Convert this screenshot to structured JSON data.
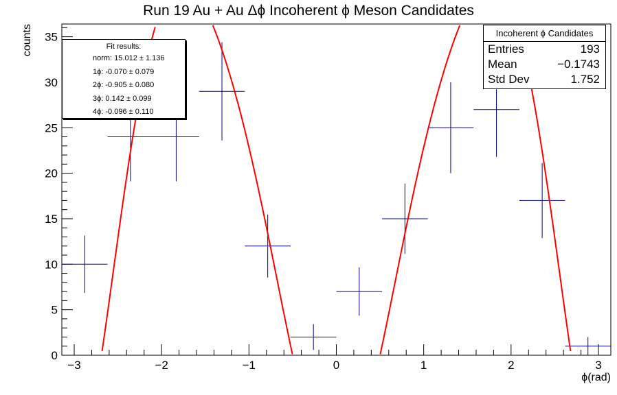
{
  "title": "Run 19 Au + Au Δϕ Incoherent ϕ Meson Candidates",
  "stats_box": {
    "name": "Incoherent ϕ Candidates",
    "rows": [
      {
        "label": "Entries",
        "value": "193"
      },
      {
        "label": "Mean",
        "value": "−0.1743"
      },
      {
        "label": "Std Dev",
        "value": "1.752"
      }
    ]
  },
  "fit_box": {
    "header": "Fit results:",
    "lines": [
      "norm: 15.012 ± 1.136",
      "1ϕ: -0.070 ± 0.079",
      "2ϕ: -0.905 ± 0.080",
      "3ϕ: 0.142 ± 0.099",
      "4ϕ: -0.096 ± 0.110"
    ]
  },
  "colors": {
    "histogram": "#000080",
    "fit": "#ff0000",
    "axis": "#000000"
  },
  "chart_data": {
    "type": "line",
    "title": "Run 19 Au + Au Δϕ Incoherent ϕ Meson Candidates",
    "xlabel": "ϕ(rad)",
    "ylabel": "counts",
    "xlim": [
      -3.14159,
      3.14159
    ],
    "ylim": [
      0,
      36.4
    ],
    "x_ticks": [
      -3,
      -2,
      -1,
      0,
      1,
      2,
      3
    ],
    "y_ticks": [
      0,
      5,
      10,
      15,
      20,
      25,
      30,
      35
    ],
    "series": [
      {
        "kind": "histogram-errorbars",
        "bin_centers": [
          -2.88,
          -2.356,
          -1.833,
          -1.309,
          -0.785,
          -0.262,
          0.262,
          0.785,
          1.309,
          1.833,
          2.356,
          2.88
        ],
        "values": [
          10,
          24,
          24,
          29,
          12,
          2,
          7,
          15,
          25,
          27,
          17,
          1
        ],
        "errors": [
          3.16,
          4.9,
          4.9,
          5.39,
          3.46,
          1.41,
          2.65,
          3.87,
          5.0,
          5.2,
          4.12,
          1.0
        ]
      },
      {
        "kind": "fit-curve",
        "function": "norm*(1 + 2*(v1*cos(x) + v2*cos(2x) + v3*cos(3x) + v4*cos(4x)))",
        "params": {
          "norm": 15.012,
          "v1": -0.07,
          "v2": -0.905,
          "v3": 0.142,
          "v4": -0.096
        }
      }
    ],
    "grid": false,
    "legend": "top-right"
  }
}
